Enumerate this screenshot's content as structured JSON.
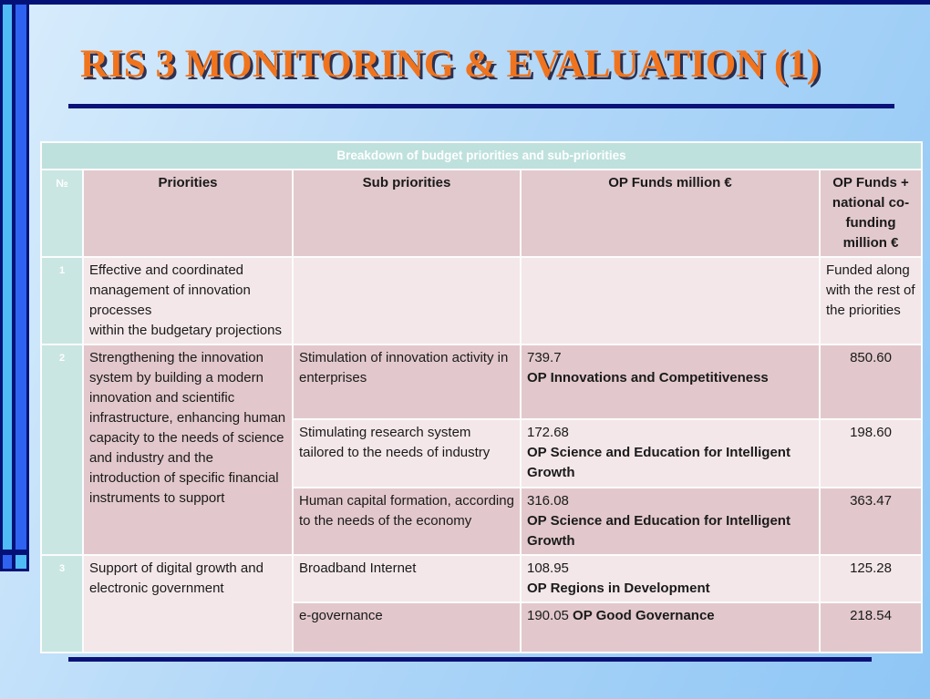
{
  "slide": {
    "title": "RIS 3 MONITORING & EVALUATION (1)",
    "accent_orange": "#f0741e",
    "navy": "#041277",
    "bar_sky_color": "#4fbcf5",
    "bar_royal_color": "#2f62f0",
    "teal": "#bee1dd",
    "pink_dark": "#e2c8cc",
    "pink_light": "#f3e7e9"
  },
  "table": {
    "caption": "Breakdown of budget priorities and sub-priorities",
    "headers": {
      "num": "№",
      "priorities": "Priorities",
      "sub_priorities": "Sub priorities",
      "op_funds": "OP Funds million €",
      "op_funds_total": "OP Funds +\nnational co-\nfunding\nmillion €"
    },
    "rows": [
      {
        "num": "1",
        "priority": "Effective and coordinated management of innovation processes\nwithin the budgetary projections",
        "subs": [
          {
            "label": "",
            "funds": "",
            "op": "",
            "total": "Funded along with the rest of the priorities"
          }
        ]
      },
      {
        "num": "2",
        "priority": "Strengthening the innovation system by building a modern innovation and scientific infrastructure, enhancing human capacity to the needs of science and industry and the introduction of specific financial instruments to support",
        "subs": [
          {
            "label": "Stimulation of innovation activity in enterprises",
            "funds": "739.7",
            "op": "OP Innovations and Competitiveness",
            "total": "850.60"
          },
          {
            "label": "Stimulating research system tailored to the needs of industry",
            "funds": "172.68",
            "op": "OP Science and Education for Intelligent Growth",
            "total": "198.60"
          },
          {
            "label": "Human capital formation, according to the needs of the economy",
            "funds": "316.08",
            "op": "OP Science and Education for Intelligent Growth",
            "total": "363.47"
          }
        ]
      },
      {
        "num": "3",
        "priority": "Support of digital growth and electronic government",
        "subs": [
          {
            "label": "Broadband Internet",
            "funds": "108.95",
            "op": "OP Regions in Development",
            "total": "125.28"
          },
          {
            "label": "e-governance",
            "funds": "190.05",
            "op": "OP Good Governance",
            "total": "218.54"
          }
        ]
      }
    ]
  }
}
